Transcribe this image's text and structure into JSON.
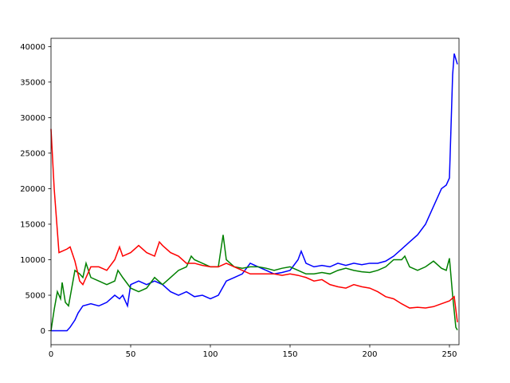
{
  "chart_data": {
    "type": "line",
    "xlim": [
      0,
      256
    ],
    "xticks": [
      0,
      50,
      100,
      150,
      200,
      250
    ],
    "ylim": [
      -1960,
      41160
    ],
    "yticks": [
      0,
      5000,
      10000,
      15000,
      20000,
      25000,
      30000,
      35000,
      40000
    ],
    "series": [
      {
        "color": "#0000ff",
        "x": [
          0,
          5,
          10,
          12,
          15,
          17,
          20,
          25,
          30,
          35,
          40,
          43,
          45,
          48,
          50,
          55,
          60,
          65,
          70,
          75,
          80,
          85,
          90,
          95,
          100,
          105,
          110,
          115,
          120,
          125,
          130,
          135,
          140,
          145,
          150,
          155,
          157,
          160,
          165,
          170,
          175,
          180,
          185,
          190,
          195,
          200,
          205,
          210,
          215,
          220,
          225,
          230,
          235,
          240,
          245,
          248,
          250,
          252,
          253,
          255
        ],
        "values": [
          0,
          0,
          0,
          500,
          1500,
          2500,
          3500,
          3800,
          3500,
          4000,
          5000,
          4500,
          5000,
          3500,
          6500,
          7000,
          6500,
          7000,
          6500,
          5500,
          5000,
          5500,
          4800,
          5000,
          4500,
          5000,
          7000,
          7500,
          8000,
          9500,
          9000,
          8500,
          8000,
          8200,
          8500,
          10000,
          11200,
          9500,
          9000,
          9200,
          9000,
          9500,
          9200,
          9500,
          9300,
          9500,
          9500,
          9800,
          10500,
          11500,
          12500,
          13500,
          15000,
          17500,
          20000,
          20500,
          21500,
          36000,
          39000,
          37500
        ]
      },
      {
        "color": "#008000",
        "x": [
          0,
          2,
          4,
          6,
          7,
          9,
          11,
          15,
          18,
          20,
          22,
          25,
          30,
          35,
          40,
          42,
          45,
          50,
          55,
          60,
          65,
          70,
          75,
          80,
          85,
          88,
          90,
          95,
          100,
          105,
          108,
          110,
          115,
          120,
          125,
          130,
          135,
          140,
          145,
          150,
          155,
          160,
          165,
          170,
          175,
          180,
          185,
          190,
          195,
          200,
          205,
          210,
          215,
          220,
          222,
          225,
          230,
          235,
          240,
          245,
          248,
          250,
          252,
          254,
          255
        ],
        "values": [
          0,
          3000,
          5500,
          4500,
          6800,
          4000,
          3500,
          8500,
          8000,
          7500,
          9500,
          7500,
          7000,
          6500,
          7000,
          8500,
          7500,
          6000,
          5500,
          6000,
          7500,
          6500,
          7500,
          8500,
          9000,
          10500,
          10000,
          9500,
          9000,
          9000,
          13500,
          10000,
          9000,
          8800,
          9000,
          9000,
          8800,
          8500,
          8800,
          9000,
          8500,
          8000,
          8000,
          8200,
          8000,
          8500,
          8800,
          8500,
          8300,
          8200,
          8500,
          9000,
          10000,
          10000,
          10500,
          9000,
          8500,
          9000,
          9800,
          8800,
          8500,
          10200,
          5000,
          500,
          100
        ]
      },
      {
        "color": "#ff0000",
        "x": [
          0,
          2,
          5,
          10,
          12,
          15,
          18,
          20,
          25,
          30,
          35,
          40,
          43,
          45,
          50,
          55,
          60,
          65,
          68,
          70,
          75,
          80,
          85,
          90,
          95,
          100,
          105,
          110,
          115,
          120,
          125,
          130,
          135,
          140,
          145,
          150,
          155,
          160,
          165,
          170,
          175,
          180,
          185,
          190,
          195,
          200,
          205,
          210,
          215,
          220,
          225,
          230,
          235,
          240,
          245,
          250,
          253,
          255
        ],
        "values": [
          28400,
          20000,
          11000,
          11500,
          11800,
          9800,
          7000,
          6500,
          9000,
          9000,
          8500,
          10000,
          11800,
          10500,
          11000,
          12000,
          11000,
          10500,
          12500,
          12000,
          11000,
          10500,
          9500,
          9500,
          9200,
          9000,
          9000,
          9500,
          9000,
          8500,
          8000,
          8000,
          8000,
          8000,
          7800,
          8000,
          7800,
          7500,
          7000,
          7200,
          6500,
          6200,
          6000,
          6500,
          6200,
          6000,
          5500,
          4800,
          4500,
          3800,
          3200,
          3300,
          3200,
          3400,
          3800,
          4200,
          4800,
          1200
        ]
      }
    ]
  }
}
